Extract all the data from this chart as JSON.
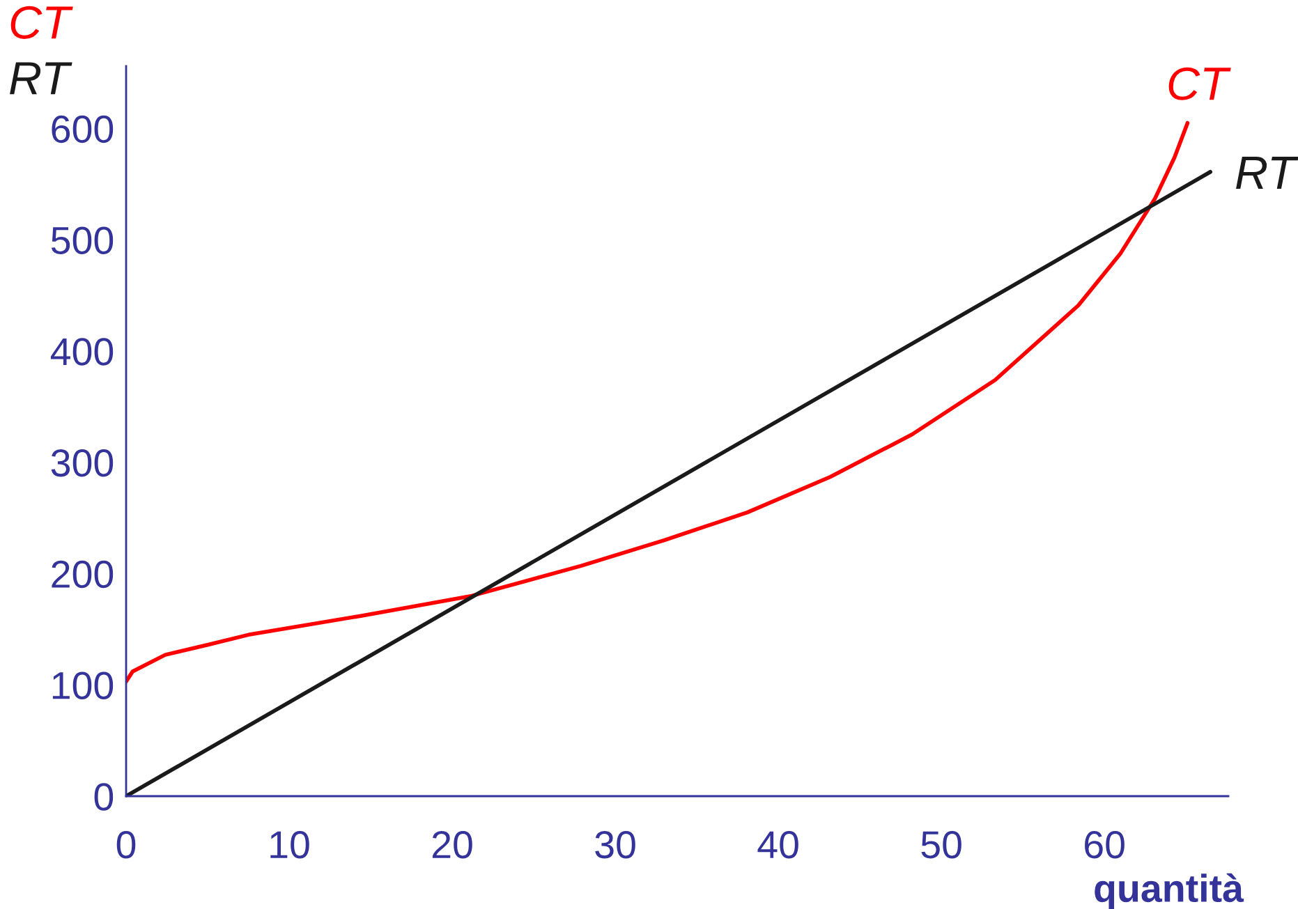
{
  "chart_data": {
    "type": "line",
    "xlabel": "quantità",
    "annotations": [
      "CT",
      "RT"
    ],
    "xlim": [
      0,
      67.6
    ],
    "ylim": [
      0,
      656
    ],
    "xticks": [
      0,
      10,
      20,
      30,
      40,
      50,
      60
    ],
    "yticks": [
      0,
      100,
      200,
      300,
      400,
      500,
      600
    ],
    "grid": false,
    "legend": false,
    "marker": "none",
    "line_style": "solid",
    "series": [
      {
        "name": "CT",
        "color": "#ff0000",
        "x": [
          0,
          0.4,
          2.4,
          5,
          7.5,
          14.4,
          21.2,
          27.9,
          33,
          38.1,
          43.2,
          48.2,
          53.3,
          58.4,
          61,
          63.1,
          64.3,
          65.1
        ],
        "values": [
          103,
          112,
          127,
          136,
          145,
          162,
          180,
          207,
          230,
          255,
          287,
          325,
          374,
          441,
          488,
          537,
          574,
          605
        ]
      },
      {
        "name": "RT",
        "color": "#1a1a1a",
        "x": [
          0,
          66.5
        ],
        "values": [
          0,
          561
        ]
      }
    ]
  }
}
